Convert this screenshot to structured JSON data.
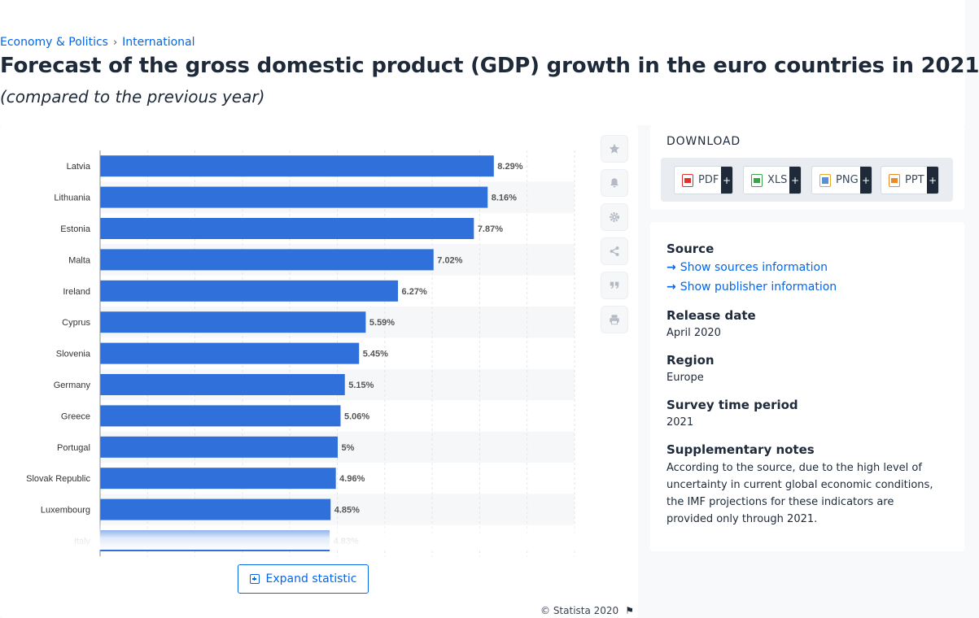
{
  "breadcrumb": {
    "items": [
      "Economy & Politics",
      "International"
    ],
    "separator": "›"
  },
  "page": {
    "title": "Forecast of the gross domestic product (GDP) growth in the euro countries in 2021",
    "subtitle": "(compared to the previous year)"
  },
  "chart_data": {
    "type": "bar",
    "orientation": "horizontal",
    "categories": [
      "Latvia",
      "Lithuania",
      "Estonia",
      "Malta",
      "Ireland",
      "Cyprus",
      "Slovenia",
      "Germany",
      "Greece",
      "Portugal",
      "Slovak Republic",
      "Luxembourg",
      "Italy"
    ],
    "values": [
      8.29,
      8.16,
      7.87,
      7.02,
      6.27,
      5.59,
      5.45,
      5.15,
      5.06,
      5.0,
      4.96,
      4.85,
      4.83
    ],
    "labels": [
      "8.29%",
      "8.16%",
      "7.87%",
      "7.02%",
      "6.27%",
      "5.59%",
      "5.45%",
      "5.15%",
      "5.06%",
      "5%",
      "4.96%",
      "4.85%",
      "4.83%"
    ],
    "xlim": [
      0,
      10
    ],
    "grid": true,
    "bar_color": "#3070db"
  },
  "toolbar": {
    "icons": [
      "star-icon",
      "bell-icon",
      "gear-icon",
      "share-icon",
      "quote-icon",
      "print-icon"
    ]
  },
  "expand_button": {
    "label": "Expand statistic"
  },
  "copyright": {
    "text": "© Statista 2020"
  },
  "download": {
    "title": "DOWNLOAD",
    "buttons": [
      {
        "label": "PDF",
        "icon": "pdf-file-icon",
        "color": "#e0322d"
      },
      {
        "label": "XLS",
        "icon": "xls-file-icon",
        "color": "#3aa548"
      },
      {
        "label": "PNG",
        "icon": "png-file-icon",
        "color": "#e5a928"
      },
      {
        "label": "PPT",
        "icon": "ppt-file-icon",
        "color": "#e88a2a"
      }
    ],
    "plus": "+"
  },
  "info": {
    "source_heading": "Source",
    "show_sources": "Show sources information",
    "show_publisher": "Show publisher information",
    "release_heading": "Release date",
    "release_value": "April 2020",
    "region_heading": "Region",
    "region_value": "Europe",
    "survey_heading": "Survey time period",
    "survey_value": "2021",
    "notes_heading": "Supplementary notes",
    "notes_value": "According to the source, due to the high level of uncertainty in current global economic conditions, the IMF projections for these indicators are provided only through 2021."
  },
  "colors": {
    "accent": "#0666e5",
    "bar": "#3070db",
    "dark": "#1e2a3a"
  }
}
